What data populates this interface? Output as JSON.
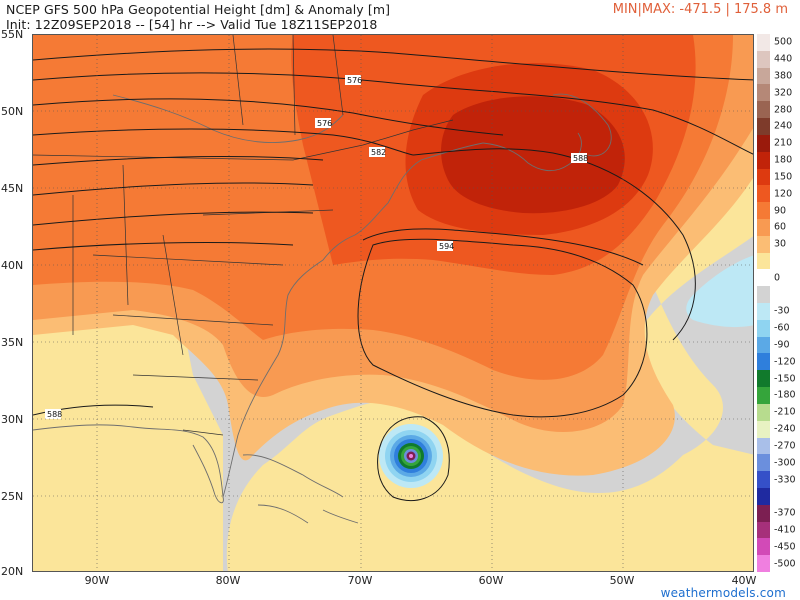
{
  "header": {
    "title": "NCEP GFS 500 hPa Geopotential Height [dm] & Anomaly [m]",
    "init": "Init: 12Z09SEP2018 -- [54] hr --> Valid Tue 18Z11SEP2018",
    "minmax": "MIN|MAX: -471.5 | 175.8 m"
  },
  "axes": {
    "lat": [
      "55N",
      "50N",
      "45N",
      "40N",
      "35N",
      "30N",
      "25N",
      "20N"
    ],
    "lon": [
      "90W",
      "80W",
      "70W",
      "60W",
      "50W",
      "40W"
    ]
  },
  "contour_labels": [
    "576",
    "576",
    "582",
    "588",
    "594",
    "588"
  ],
  "colorbar": [
    {
      "label": "500",
      "color": "#f2e8e6"
    },
    {
      "label": "440",
      "color": "#ddc6bf"
    },
    {
      "label": "380",
      "color": "#c8a79a"
    },
    {
      "label": "320",
      "color": "#b58877"
    },
    {
      "label": "280",
      "color": "#9a6452"
    },
    {
      "label": "240",
      "color": "#7e3b2b"
    },
    {
      "label": "210",
      "color": "#9a1a0c"
    },
    {
      "label": "180",
      "color": "#c12309"
    },
    {
      "label": "150",
      "color": "#dd3a10"
    },
    {
      "label": "120",
      "color": "#ee5820"
    },
    {
      "label": "90",
      "color": "#f57a35"
    },
    {
      "label": "60",
      "color": "#f89a52"
    },
    {
      "label": "30",
      "color": "#fbbd74"
    },
    {
      "label": "",
      "color": "#fbe59a"
    },
    {
      "label": "0",
      "color": "#ffffff"
    },
    {
      "label": "",
      "color": "#d3d3d3"
    },
    {
      "label": "-30",
      "color": "#bde8f5"
    },
    {
      "label": "-60",
      "color": "#8fd4f1"
    },
    {
      "label": "-90",
      "color": "#5ba9e6"
    },
    {
      "label": "-120",
      "color": "#2f7fdc"
    },
    {
      "label": "-150",
      "color": "#117a2c"
    },
    {
      "label": "-180",
      "color": "#35a53b"
    },
    {
      "label": "-210",
      "color": "#b7dc8e"
    },
    {
      "label": "-240",
      "color": "#e8f2c2"
    },
    {
      "label": "-270",
      "color": "#a9bfe9"
    },
    {
      "label": "-300",
      "color": "#6b8fdd"
    },
    {
      "label": "-330",
      "color": "#3550c8"
    },
    {
      "label": "",
      "color": "#1f2aa0"
    },
    {
      "label": "-370",
      "color": "#7c1f52"
    },
    {
      "label": "-410",
      "color": "#a6307a"
    },
    {
      "label": "-450",
      "color": "#d24ab7"
    },
    {
      "label": "-500",
      "color": "#f07fe0"
    }
  ],
  "credit": "weathermodels.com",
  "colors": {
    "positive_light": "#fbe59a",
    "positive_max": "#c12309",
    "negative_max": "#3550c8",
    "neutral": "#d3d3d3"
  }
}
